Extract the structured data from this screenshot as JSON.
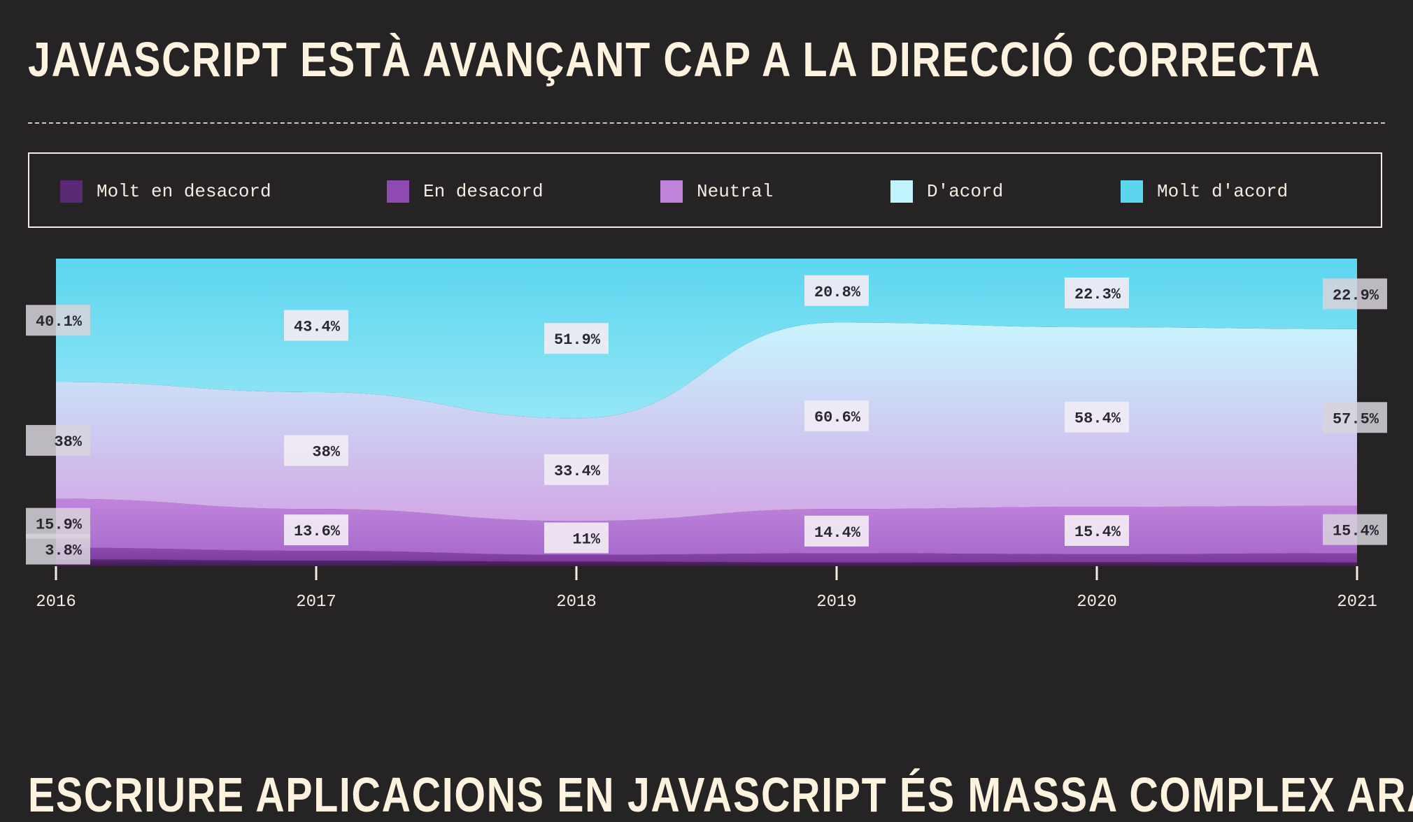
{
  "title": "JAVASCRIPT ESTÀ AVANÇANT CAP A LA DIRECCIÓ CORRECTA",
  "next_title": "ESCRIURE APLICACIONS EN JAVASCRIPT ÉS MASSA COMPLEX ARA",
  "legend": [
    {
      "label": "Molt en desacord",
      "color": "#5b2875"
    },
    {
      "label": "En desacord",
      "color": "#8e4ab0"
    },
    {
      "label": "Neutral",
      "color": "#c084dc"
    },
    {
      "label": "D'acord",
      "color": "#c1f3fd"
    },
    {
      "label": "Molt d'acord",
      "color": "#5cd6ef"
    }
  ],
  "chart_data": {
    "type": "area",
    "stacked": true,
    "normalized": true,
    "title": "JAVASCRIPT ESTÀ AVANÇANT CAP A LA DIRECCIÓ CORRECTA",
    "categories": [
      "2016",
      "2017",
      "2018",
      "2019",
      "2020",
      "2021"
    ],
    "ylim": [
      0,
      100
    ],
    "series": [
      {
        "name": "Molt en desacord",
        "values": [
          2.2,
          1.8,
          1.5,
          1.2,
          1.3,
          1.2
        ],
        "labels": [
          null,
          null,
          null,
          null,
          null,
          null
        ]
      },
      {
        "name": "En desacord",
        "values": [
          3.8,
          3.2,
          2.2,
          3.0,
          2.6,
          3.0
        ],
        "labels": [
          "3.8%",
          null,
          null,
          null,
          null,
          null
        ]
      },
      {
        "name": "Neutral",
        "values": [
          15.9,
          13.6,
          11.0,
          14.4,
          15.4,
          15.4
        ],
        "labels": [
          "15.9%",
          "13.6%",
          "11%",
          "14.4%",
          "15.4%",
          "15.4%"
        ]
      },
      {
        "name": "D'acord",
        "values": [
          38.0,
          38.0,
          33.4,
          60.6,
          58.4,
          57.5
        ],
        "labels": [
          "38%",
          "38%",
          "33.4%",
          "60.6%",
          "58.4%",
          "57.5%"
        ]
      },
      {
        "name": "Molt d'acord",
        "values": [
          40.1,
          43.4,
          51.9,
          20.8,
          22.3,
          22.9
        ],
        "labels": [
          "40.1%",
          "43.4%",
          "51.9%",
          "20.8%",
          "22.3%",
          "22.9%"
        ]
      }
    ],
    "grid": false,
    "legend_position": "top"
  }
}
